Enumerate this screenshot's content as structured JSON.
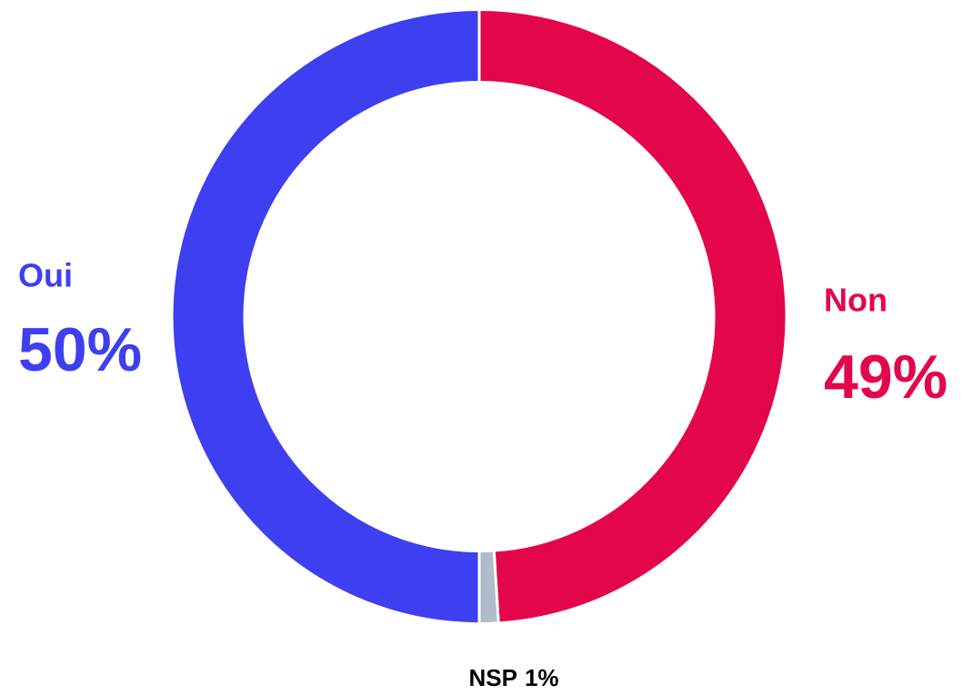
{
  "chart_data": {
    "type": "donut",
    "categories": [
      "Non",
      "NSP",
      "Oui"
    ],
    "values": [
      49,
      1,
      50
    ],
    "value_labels": [
      "49%",
      "1%",
      "50%"
    ],
    "colors": [
      "#e4064a",
      "#b0bccc",
      "#3d3ff0"
    ]
  }
}
